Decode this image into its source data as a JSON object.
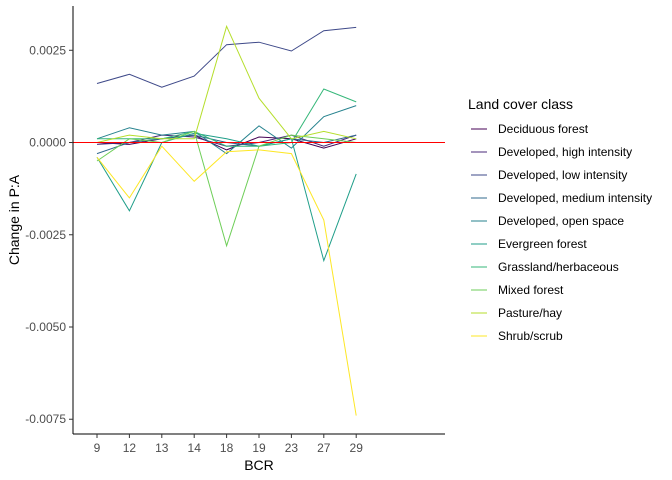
{
  "chart_data": {
    "type": "line",
    "title": "",
    "xlabel": "BCR",
    "ylabel": "Change in P:A",
    "categories": [
      "9",
      "12",
      "13",
      "14",
      "18",
      "19",
      "23",
      "27",
      "29"
    ],
    "ylim": [
      -0.0079,
      0.0037
    ],
    "yticks": [
      {
        "value": 0.0025,
        "label": "0.0025"
      },
      {
        "value": 0.0,
        "label": "0.0000"
      },
      {
        "value": -0.0025,
        "label": "-0.0025"
      },
      {
        "value": -0.005,
        "label": "-0.0050"
      },
      {
        "value": -0.0075,
        "label": "-0.0075"
      }
    ],
    "grid": false,
    "reference_line": {
      "y": 0.0,
      "color": "#ff0000"
    },
    "legend": {
      "title": "Land cover class",
      "position": "right"
    },
    "series": [
      {
        "name": "Deciduous forest",
        "color": "#440154",
        "values": [
          0.0,
          -5e-05,
          0.0001,
          0.0002,
          -0.0002,
          0.00015,
          0.0001,
          -0.00015,
          0.0001
        ]
      },
      {
        "name": "Developed, high intensity",
        "color": "#482878",
        "values": [
          -5e-05,
          0.0,
          0.0002,
          0.00015,
          -0.0001,
          0.0,
          0.0002,
          -0.0001,
          0.0002
        ]
      },
      {
        "name": "Developed, low intensity",
        "color": "#3e4989",
        "values": [
          0.0016,
          0.00185,
          0.0015,
          0.0018,
          0.00265,
          0.00272,
          0.00248,
          0.00303,
          0.00312
        ]
      },
      {
        "name": "Developed, medium intensity",
        "color": "#31688e",
        "values": [
          -0.0003,
          0.0,
          0.0001,
          0.0002,
          0.0,
          -0.0001,
          0.0001,
          0.0,
          0.0002
        ]
      },
      {
        "name": "Developed, open space",
        "color": "#26828e",
        "values": [
          0.0001,
          0.0004,
          0.0002,
          0.0003,
          -0.0003,
          0.00045,
          -0.00015,
          0.0007,
          0.001
        ]
      },
      {
        "name": "Evergreen forest",
        "color": "#1f9e89",
        "values": [
          -0.0004,
          -0.00185,
          0.0,
          0.00025,
          0.0001,
          -0.0001,
          0.0001,
          -0.0032,
          -0.00085
        ]
      },
      {
        "name": "Grassland/herbaceous",
        "color": "#35b779",
        "values": [
          0.0001,
          0.0001,
          0.0001,
          0.0003,
          -0.0001,
          -0.0001,
          0.0,
          0.00145,
          0.0011
        ]
      },
      {
        "name": "Mixed forest",
        "color": "#6ece58",
        "values": [
          -0.0005,
          0.0001,
          0.0,
          0.0003,
          -0.0028,
          -0.0001,
          0.0002,
          0.0001,
          0.0
        ]
      },
      {
        "name": "Pasture/hay",
        "color": "#b5de2b",
        "values": [
          0.0,
          0.0002,
          0.0001,
          0.0001,
          0.00315,
          0.0012,
          0.0001,
          0.0003,
          0.0001
        ]
      },
      {
        "name": "Shrub/scrub",
        "color": "#fde725",
        "values": [
          -0.0004,
          -0.0015,
          -0.0001,
          -0.00105,
          -0.00025,
          -0.0002,
          -0.0003,
          -0.0021,
          -0.0074
        ]
      }
    ]
  }
}
